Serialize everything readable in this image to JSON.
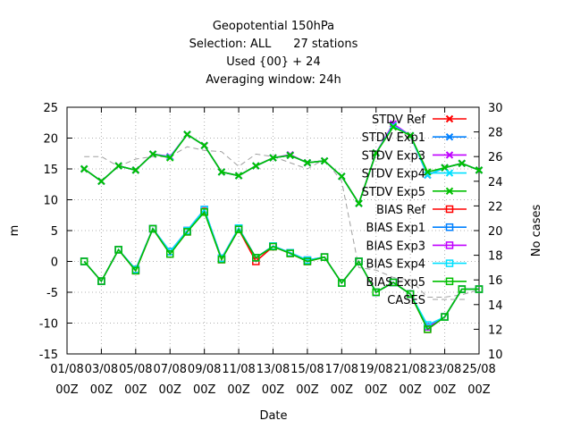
{
  "chart_data": {
    "type": "line",
    "title_lines": [
      "Geopotential 150hPa",
      "Selection: ALL      27 stations",
      "Used {00} + 24",
      "Averaging window: 24h"
    ],
    "xlabel": "Date",
    "ylabel": "m",
    "y2label": "No cases",
    "ylim": [
      -15,
      25
    ],
    "y2lim": [
      10,
      30
    ],
    "yticks": [
      -15,
      -10,
      -5,
      0,
      5,
      10,
      15,
      20,
      25
    ],
    "y2ticks": [
      10,
      12,
      14,
      16,
      18,
      20,
      22,
      24,
      26,
      28,
      30
    ],
    "xlim": [
      0,
      24
    ],
    "xticks": [
      {
        "x": 0,
        "line1": "01/08",
        "line2": "00Z"
      },
      {
        "x": 2,
        "line1": "03/08",
        "line2": "00Z"
      },
      {
        "x": 4,
        "line1": "05/08",
        "line2": "00Z"
      },
      {
        "x": 6,
        "line1": "07/08",
        "line2": "00Z"
      },
      {
        "x": 8,
        "line1": "09/08",
        "line2": "00Z"
      },
      {
        "x": 10,
        "line1": "11/08",
        "line2": "00Z"
      },
      {
        "x": 12,
        "line1": "13/08",
        "line2": "00Z"
      },
      {
        "x": 14,
        "line1": "15/08",
        "line2": "00Z"
      },
      {
        "x": 16,
        "line1": "17/08",
        "line2": "00Z"
      },
      {
        "x": 18,
        "line1": "19/08",
        "line2": "00Z"
      },
      {
        "x": 20,
        "line1": "21/08",
        "line2": "00Z"
      },
      {
        "x": 22,
        "line1": "23/08",
        "line2": "00Z"
      },
      {
        "x": 24,
        "line1": "25/08",
        "line2": "00Z"
      }
    ],
    "grid": true,
    "legend_position": "top-right",
    "x": [
      1,
      2,
      3,
      4,
      5,
      6,
      7,
      8,
      9,
      10,
      11,
      12,
      13,
      14,
      15,
      16,
      17,
      18,
      19,
      20,
      21,
      22,
      23,
      24
    ],
    "series": [
      {
        "name": "STDV Ref",
        "color": "#ff0000",
        "marker": "x",
        "axis": "left",
        "values": [
          15.0,
          13.0,
          15.5,
          14.8,
          17.4,
          16.9,
          20.6,
          18.8,
          14.5,
          13.9,
          15.5,
          16.8,
          17.2,
          16.0,
          16.3,
          13.8,
          9.4,
          17.6,
          22.0,
          20.4,
          14.0,
          15.2,
          15.9,
          14.8
        ]
      },
      {
        "name": "STDV Exp1",
        "color": "#0080ff",
        "marker": "x",
        "axis": "left",
        "values": [
          15.0,
          13.0,
          15.5,
          14.8,
          17.4,
          16.9,
          20.6,
          18.8,
          14.5,
          13.9,
          15.5,
          16.8,
          17.2,
          16.0,
          16.3,
          13.8,
          9.4,
          17.6,
          22.0,
          20.4,
          14.0,
          15.2,
          15.9,
          14.8
        ]
      },
      {
        "name": "STDV Exp3",
        "color": "#c000ff",
        "marker": "x",
        "axis": "left",
        "values": [
          15.0,
          13.0,
          15.5,
          14.8,
          17.4,
          17.0,
          20.6,
          18.8,
          14.5,
          13.9,
          15.5,
          16.8,
          17.3,
          16.0,
          16.3,
          13.8,
          9.4,
          17.6,
          22.3,
          20.4,
          14.0,
          15.2,
          15.9,
          14.8
        ]
      },
      {
        "name": "STDV Exp4",
        "color": "#00e0ff",
        "marker": "x",
        "axis": "left",
        "values": [
          15.0,
          13.0,
          15.5,
          14.8,
          17.4,
          16.9,
          20.6,
          18.8,
          14.5,
          13.9,
          15.5,
          16.8,
          17.2,
          16.0,
          16.3,
          13.8,
          9.4,
          17.6,
          22.0,
          20.4,
          14.0,
          15.2,
          15.9,
          14.8
        ]
      },
      {
        "name": "STDV Exp5",
        "color": "#00c000",
        "marker": "x",
        "axis": "left",
        "values": [
          15.0,
          13.0,
          15.5,
          14.8,
          17.4,
          16.8,
          20.6,
          18.8,
          14.5,
          13.9,
          15.5,
          16.8,
          17.2,
          16.0,
          16.3,
          13.8,
          9.4,
          17.6,
          21.8,
          20.4,
          14.5,
          15.2,
          15.9,
          14.8
        ]
      },
      {
        "name": "BIAS Ref",
        "color": "#ff0000",
        "marker": "square",
        "axis": "left",
        "values": [
          0.0,
          -3.2,
          1.9,
          -1.5,
          5.3,
          1.2,
          4.8,
          8.1,
          0.3,
          5.2,
          0.0,
          2.4,
          1.3,
          0.0,
          0.7,
          -3.5,
          0.0,
          -5.0,
          -3.4,
          -5.3,
          -11.0,
          -9.0,
          -4.5,
          -4.5
        ]
      },
      {
        "name": "BIAS Exp1",
        "color": "#0080ff",
        "marker": "square",
        "axis": "left",
        "values": [
          0.0,
          -3.2,
          1.9,
          -1.3,
          5.3,
          1.6,
          5.0,
          8.4,
          0.5,
          5.4,
          0.6,
          2.5,
          1.4,
          0.2,
          0.7,
          -3.5,
          0.0,
          -5.0,
          -3.4,
          -5.3,
          -10.6,
          -9.0,
          -4.5,
          -4.5
        ]
      },
      {
        "name": "BIAS Exp3",
        "color": "#c000ff",
        "marker": "square",
        "axis": "left",
        "values": [
          0.0,
          -3.2,
          1.9,
          -1.3,
          5.3,
          1.6,
          5.0,
          8.4,
          0.5,
          5.4,
          0.6,
          2.5,
          1.4,
          0.2,
          0.7,
          -3.5,
          0.0,
          -5.0,
          -3.4,
          -5.3,
          -10.6,
          -9.0,
          -4.5,
          -4.5
        ]
      },
      {
        "name": "BIAS Exp4",
        "color": "#00e0ff",
        "marker": "square",
        "axis": "left",
        "values": [
          0.0,
          -3.2,
          1.9,
          -1.3,
          5.3,
          1.6,
          5.0,
          8.4,
          0.5,
          5.4,
          0.6,
          2.5,
          1.4,
          0.2,
          0.7,
          -3.5,
          0.0,
          -5.0,
          -3.4,
          -5.3,
          -10.3,
          -9.0,
          -4.5,
          -4.5
        ]
      },
      {
        "name": "BIAS Exp5",
        "color": "#00c000",
        "marker": "square",
        "axis": "left",
        "values": [
          0.0,
          -3.2,
          1.9,
          -1.5,
          5.3,
          1.2,
          4.8,
          8.0,
          0.3,
          5.2,
          0.6,
          2.4,
          1.3,
          0.0,
          0.7,
          -3.5,
          0.0,
          -5.0,
          -3.4,
          -5.3,
          -11.0,
          -9.0,
          -4.5,
          -4.5
        ]
      },
      {
        "name": "CASES",
        "color": "#a0a0a0",
        "marker": "none",
        "axis": "right",
        "dashed": true,
        "values": [
          26.0,
          26.0,
          25.2,
          25.8,
          26.0,
          26.0,
          26.8,
          26.5,
          26.4,
          25.2,
          26.2,
          26.0,
          25.5,
          25.0,
          25.8,
          24.0,
          17.0,
          16.8,
          16.2,
          16.0,
          14.6,
          14.6,
          14.8,
          15.2
        ]
      }
    ]
  }
}
